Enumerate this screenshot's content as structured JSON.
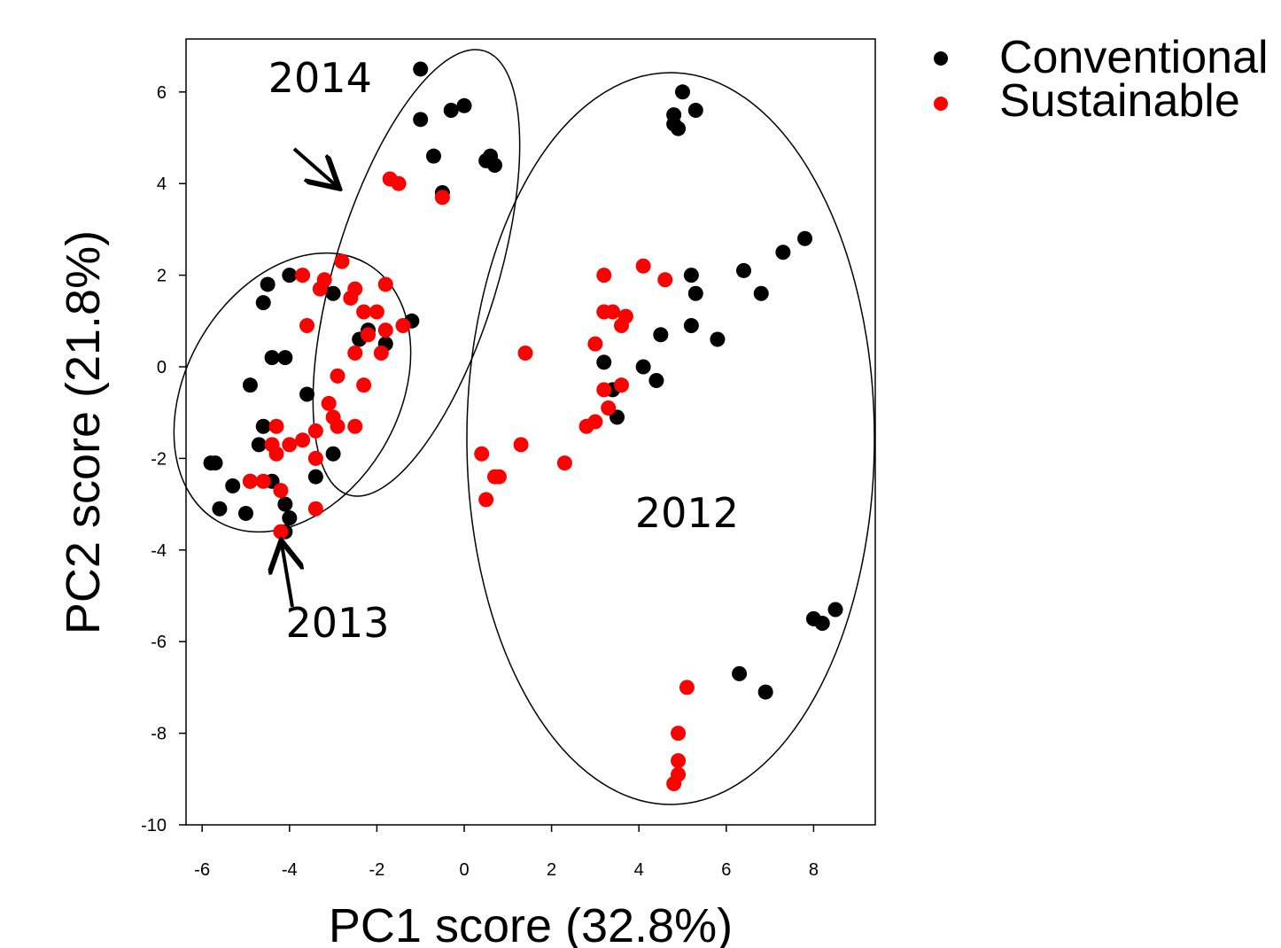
{
  "chart_data": {
    "type": "scatter",
    "title": "",
    "xlabel": "PC1 score (32.8%)",
    "ylabel": "PC2 score (21.8%)",
    "xlim": [
      -6.4,
      9.3
    ],
    "ylim": [
      -10,
      7.2
    ],
    "xticks": [
      -6,
      -4,
      -2,
      0,
      2,
      4,
      6,
      8
    ],
    "yticks": [
      6,
      4,
      2,
      0,
      -2,
      -4,
      -6,
      -8,
      -10
    ],
    "grid": false,
    "legend_position": "outside top-right",
    "series": [
      {
        "name": "Conventional",
        "color": "#000000",
        "points": [
          [
            -1.0,
            6.5
          ],
          [
            -1.0,
            5.4
          ],
          [
            -0.3,
            5.6
          ],
          [
            0.0,
            5.7
          ],
          [
            -0.7,
            4.6
          ],
          [
            0.5,
            4.5
          ],
          [
            0.6,
            4.6
          ],
          [
            0.7,
            4.4
          ],
          [
            -0.5,
            3.8
          ],
          [
            -4.0,
            2.0
          ],
          [
            -4.5,
            1.8
          ],
          [
            -3.0,
            1.6
          ],
          [
            -4.6,
            1.4
          ],
          [
            -4.4,
            0.2
          ],
          [
            -4.1,
            0.2
          ],
          [
            -4.9,
            -0.4
          ],
          [
            -3.6,
            -0.6
          ],
          [
            -2.4,
            0.6
          ],
          [
            -2.2,
            0.8
          ],
          [
            -1.8,
            0.5
          ],
          [
            -1.2,
            1.0
          ],
          [
            -4.6,
            -1.3
          ],
          [
            -4.7,
            -1.7
          ],
          [
            -3.0,
            -1.9
          ],
          [
            -3.4,
            -2.4
          ],
          [
            -5.8,
            -2.1
          ],
          [
            -5.7,
            -2.1
          ],
          [
            -5.3,
            -2.6
          ],
          [
            -4.9,
            -2.5
          ],
          [
            -4.4,
            -2.5
          ],
          [
            -4.1,
            -3.0
          ],
          [
            -4.0,
            -3.3
          ],
          [
            -5.6,
            -3.1
          ],
          [
            -5.0,
            -3.2
          ],
          [
            -4.1,
            -3.6
          ],
          [
            5.0,
            6.0
          ],
          [
            4.8,
            5.5
          ],
          [
            4.8,
            5.3
          ],
          [
            4.9,
            5.2
          ],
          [
            5.3,
            5.6
          ],
          [
            7.8,
            2.8
          ],
          [
            7.3,
            2.5
          ],
          [
            6.4,
            2.1
          ],
          [
            6.8,
            1.6
          ],
          [
            5.2,
            2.0
          ],
          [
            5.3,
            1.6
          ],
          [
            5.2,
            0.9
          ],
          [
            5.8,
            0.6
          ],
          [
            4.5,
            0.7
          ],
          [
            3.2,
            0.1
          ],
          [
            4.1,
            0.0
          ],
          [
            4.4,
            -0.3
          ],
          [
            3.4,
            -0.5
          ],
          [
            3.5,
            -1.1
          ],
          [
            8.0,
            -5.5
          ],
          [
            8.2,
            -5.6
          ],
          [
            8.5,
            -5.3
          ],
          [
            6.3,
            -6.7
          ],
          [
            6.9,
            -7.1
          ]
        ]
      },
      {
        "name": "Sustainable",
        "color": "#ff0000",
        "points": [
          [
            -1.7,
            4.1
          ],
          [
            -1.5,
            4.0
          ],
          [
            -0.5,
            3.7
          ],
          [
            -2.8,
            2.3
          ],
          [
            -3.7,
            2.0
          ],
          [
            -3.2,
            1.9
          ],
          [
            -3.3,
            1.7
          ],
          [
            -2.5,
            1.7
          ],
          [
            -2.6,
            1.5
          ],
          [
            -1.8,
            1.8
          ],
          [
            -2.3,
            1.2
          ],
          [
            -2.0,
            1.2
          ],
          [
            -3.6,
            0.9
          ],
          [
            -2.2,
            0.7
          ],
          [
            -1.8,
            0.8
          ],
          [
            -1.4,
            0.9
          ],
          [
            -2.5,
            0.3
          ],
          [
            -1.9,
            0.3
          ],
          [
            -2.9,
            -0.2
          ],
          [
            -2.3,
            -0.4
          ],
          [
            -3.1,
            -0.8
          ],
          [
            -3.0,
            -1.1
          ],
          [
            -2.9,
            -1.3
          ],
          [
            -2.5,
            -1.3
          ],
          [
            -4.3,
            -1.3
          ],
          [
            -3.4,
            -1.4
          ],
          [
            -4.4,
            -1.7
          ],
          [
            -4.0,
            -1.7
          ],
          [
            -3.7,
            -1.6
          ],
          [
            -4.3,
            -1.9
          ],
          [
            -3.4,
            -2.0
          ],
          [
            -4.9,
            -2.5
          ],
          [
            -4.6,
            -2.5
          ],
          [
            -4.2,
            -2.7
          ],
          [
            -3.4,
            -3.1
          ],
          [
            -4.2,
            -3.6
          ],
          [
            4.1,
            2.2
          ],
          [
            4.6,
            1.9
          ],
          [
            3.2,
            2.0
          ],
          [
            3.2,
            1.2
          ],
          [
            3.4,
            1.2
          ],
          [
            3.7,
            1.1
          ],
          [
            3.6,
            0.9
          ],
          [
            3.0,
            0.5
          ],
          [
            1.4,
            0.3
          ],
          [
            3.2,
            -0.5
          ],
          [
            3.6,
            -0.4
          ],
          [
            3.3,
            -0.9
          ],
          [
            3.0,
            -1.2
          ],
          [
            2.8,
            -1.3
          ],
          [
            1.3,
            -1.7
          ],
          [
            0.4,
            -1.9
          ],
          [
            2.3,
            -2.1
          ],
          [
            0.8,
            -2.4
          ],
          [
            0.7,
            -2.4
          ],
          [
            0.5,
            -2.9
          ],
          [
            5.1,
            -7.0
          ],
          [
            4.9,
            -8.0
          ],
          [
            4.9,
            -8.6
          ],
          [
            4.9,
            -8.9
          ],
          [
            4.8,
            -9.1
          ]
        ]
      }
    ],
    "annotations": [
      {
        "text": "2014",
        "x": -3.3,
        "y": 6.0
      },
      {
        "text": "2013",
        "x": -2.9,
        "y": -5.9
      },
      {
        "text": "2012",
        "x": 5.1,
        "y": -3.5
      }
    ]
  }
}
